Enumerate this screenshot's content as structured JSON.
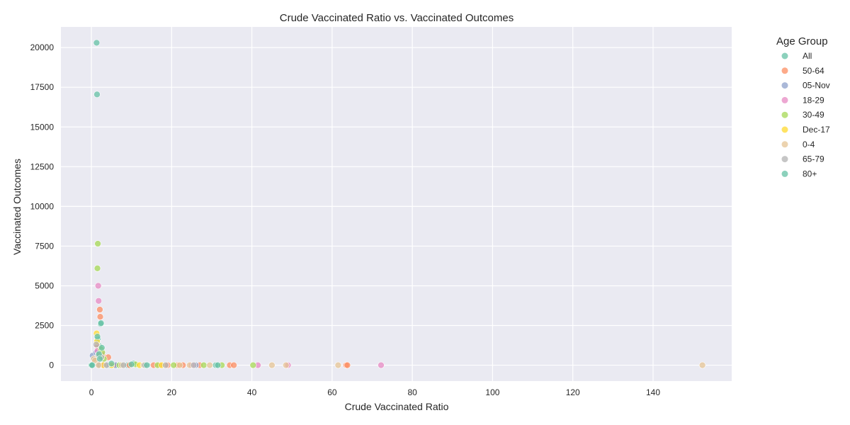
{
  "chart_data": {
    "type": "scatter",
    "title": "Crude Vaccinated Ratio vs. Vaccinated Outcomes",
    "xlabel": "Crude Vaccinated Ratio",
    "ylabel": "Vaccinated Outcomes",
    "xlim": [
      -7.6,
      159.6
    ],
    "ylim": [
      -1000,
      21300
    ],
    "x_ticks": [
      0,
      20,
      40,
      60,
      80,
      100,
      120,
      140
    ],
    "y_ticks": [
      0,
      2500,
      5000,
      7500,
      10000,
      12500,
      15000,
      17500,
      20000
    ],
    "grid": true,
    "legend": {
      "title": "Age Group",
      "placement": "outside-right"
    },
    "series": [
      {
        "name": "All",
        "color": "#66c2a5",
        "points": [
          [
            1.3,
            20300
          ],
          [
            1.4,
            17050
          ],
          [
            2.3,
            2600
          ],
          [
            2.4,
            2650
          ],
          [
            1.6,
            1650
          ],
          [
            1.9,
            700
          ],
          [
            2.0,
            1200
          ],
          [
            0,
            0
          ],
          [
            2.5,
            0
          ],
          [
            4.5,
            0
          ],
          [
            6.5,
            0
          ],
          [
            9.0,
            0
          ],
          [
            10.5,
            100
          ],
          [
            14.0,
            0
          ],
          [
            31.0,
            0
          ]
        ]
      },
      {
        "name": "50-64",
        "color": "#fc8d62",
        "points": [
          [
            2.1,
            3500
          ],
          [
            2.2,
            3050
          ],
          [
            1.5,
            1200
          ],
          [
            2.8,
            600
          ],
          [
            4.2,
            500
          ],
          [
            3.0,
            0
          ],
          [
            5.5,
            0
          ],
          [
            9.5,
            0
          ],
          [
            15.5,
            0
          ],
          [
            17.0,
            0
          ],
          [
            19.0,
            0
          ],
          [
            21.5,
            0
          ],
          [
            22.8,
            0
          ],
          [
            27.0,
            0
          ],
          [
            34.5,
            0
          ],
          [
            35.5,
            0
          ],
          [
            63.5,
            0
          ],
          [
            63.8,
            0
          ]
        ]
      },
      {
        "name": "05-Nov",
        "color": "#8da0cb",
        "points": [
          [
            0.3,
            600
          ],
          [
            0.6,
            350
          ],
          [
            1.2,
            800
          ],
          [
            2.0,
            0
          ],
          [
            3.5,
            0
          ],
          [
            6.0,
            0
          ],
          [
            13.5,
            0
          ],
          [
            26.0,
            0
          ]
        ]
      },
      {
        "name": "18-29",
        "color": "#e78ac3",
        "points": [
          [
            1.7,
            5000
          ],
          [
            1.8,
            4050
          ],
          [
            1.5,
            900
          ],
          [
            2.6,
            800
          ],
          [
            2.9,
            0
          ],
          [
            25.0,
            0
          ],
          [
            41.5,
            0
          ],
          [
            49.0,
            0
          ],
          [
            72.2,
            0
          ]
        ]
      },
      {
        "name": "30-49",
        "color": "#a6d854",
        "points": [
          [
            1.6,
            7650
          ],
          [
            1.5,
            6100
          ],
          [
            2.4,
            1000
          ],
          [
            2.7,
            800
          ],
          [
            3.1,
            400
          ],
          [
            7.0,
            0
          ],
          [
            11.0,
            50
          ],
          [
            16.5,
            0
          ],
          [
            20.5,
            0
          ],
          [
            28.0,
            0
          ],
          [
            32.5,
            0
          ],
          [
            40.3,
            0
          ]
        ]
      },
      {
        "name": "Dec-17",
        "color": "#ffd92f",
        "points": [
          [
            1.3,
            2000
          ],
          [
            1.4,
            1500
          ],
          [
            2.0,
            600
          ],
          [
            3.0,
            0
          ],
          [
            5.0,
            0
          ],
          [
            12.0,
            0
          ],
          [
            17.5,
            0
          ]
        ]
      },
      {
        "name": "0-4",
        "color": "#e5c494",
        "points": [
          [
            0.6,
            400
          ],
          [
            0.9,
            300
          ],
          [
            1.8,
            0
          ],
          [
            7.5,
            0
          ],
          [
            13.0,
            0
          ],
          [
            22.0,
            0
          ],
          [
            24.5,
            0
          ],
          [
            29.5,
            0
          ],
          [
            45.0,
            0
          ],
          [
            48.5,
            0
          ],
          [
            61.5,
            0
          ],
          [
            152.3,
            0
          ]
        ]
      },
      {
        "name": "65-79",
        "color": "#b3b3b3",
        "points": [
          [
            1.2,
            1300
          ],
          [
            1.7,
            650
          ],
          [
            2.5,
            500
          ],
          [
            3.8,
            0
          ],
          [
            8.0,
            0
          ],
          [
            13.3,
            0
          ],
          [
            18.5,
            0
          ],
          [
            25.5,
            0
          ]
        ]
      },
      {
        "name": "80+",
        "color": "#66c2a5",
        "points": [
          [
            1.5,
            1800
          ],
          [
            1.9,
            700
          ],
          [
            2.1,
            400
          ],
          [
            2.6,
            1100
          ],
          [
            5.0,
            100
          ],
          [
            10.0,
            50
          ],
          [
            13.8,
            0
          ],
          [
            31.5,
            0
          ],
          [
            0,
            0
          ],
          [
            0.2,
            0
          ]
        ]
      }
    ]
  }
}
